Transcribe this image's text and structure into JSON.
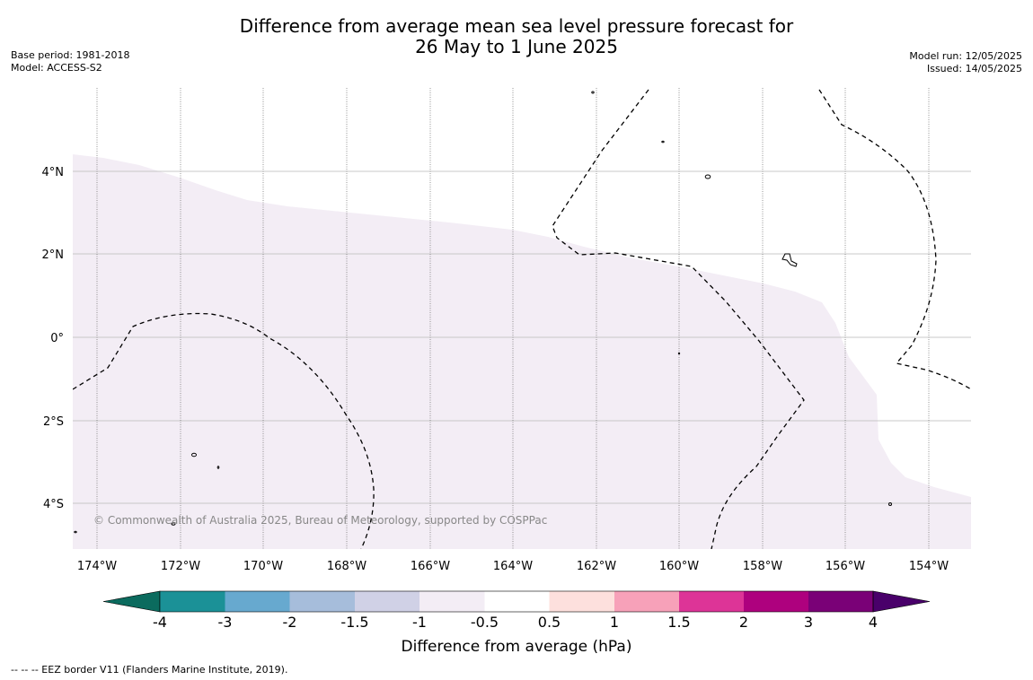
{
  "header": {
    "title_line1": "Difference from average mean sea level pressure forecast for",
    "title_line2": "26 May to 1 June 2025",
    "base_period": "Base period: 1981-2018",
    "model": "Model: ACCESS-S2",
    "model_run": "Model run: 12/05/2025",
    "issued": "Issued: 14/05/2025"
  },
  "map": {
    "lon_labels": [
      "174°W",
      "172°W",
      "170°W",
      "168°W",
      "166°W",
      "164°W",
      "162°W",
      "160°W",
      "158°W",
      "156°W",
      "154°W"
    ],
    "lat_labels": [
      "4°N",
      "2°N",
      "0°",
      "2°S",
      "4°S"
    ],
    "copyright": "© Commonwealth of Australia 2025, Bureau of Meteorology, supported by COSPPac",
    "anomaly_fill_color": "#f3edf5",
    "anomaly_range_hpa": [
      -1,
      -0.5
    ]
  },
  "colorbar": {
    "title": "Difference from average (hPa)",
    "tick_labels": [
      "-4",
      "-3",
      "-2",
      "-1.5",
      "-1",
      "-0.5",
      "0.5",
      "1",
      "1.5",
      "2",
      "3",
      "4"
    ],
    "bins": [
      {
        "from": -4,
        "to": -3,
        "color": "#1b9197"
      },
      {
        "from": -3,
        "to": -2,
        "color": "#67a9cf"
      },
      {
        "from": -2,
        "to": -1.5,
        "color": "#a6bddb"
      },
      {
        "from": -1.5,
        "to": -1,
        "color": "#d0d1e6"
      },
      {
        "from": -1,
        "to": -0.5,
        "color": "#f3edf5"
      },
      {
        "from": -0.5,
        "to": 0.5,
        "color": "#ffffff"
      },
      {
        "from": 0.5,
        "to": 1,
        "color": "#fde0dd"
      },
      {
        "from": 1,
        "to": 1.5,
        "color": "#f7a1b9"
      },
      {
        "from": 1.5,
        "to": 2,
        "color": "#dd3497"
      },
      {
        "from": 2,
        "to": 3,
        "color": "#ae017e"
      },
      {
        "from": 3,
        "to": 4,
        "color": "#7a0177"
      }
    ],
    "under_color": "#0b6b5e",
    "over_color": "#49006a"
  },
  "footnote": "--  --  -- EEZ border V11 (Flanders Marine Institute, 2019)."
}
